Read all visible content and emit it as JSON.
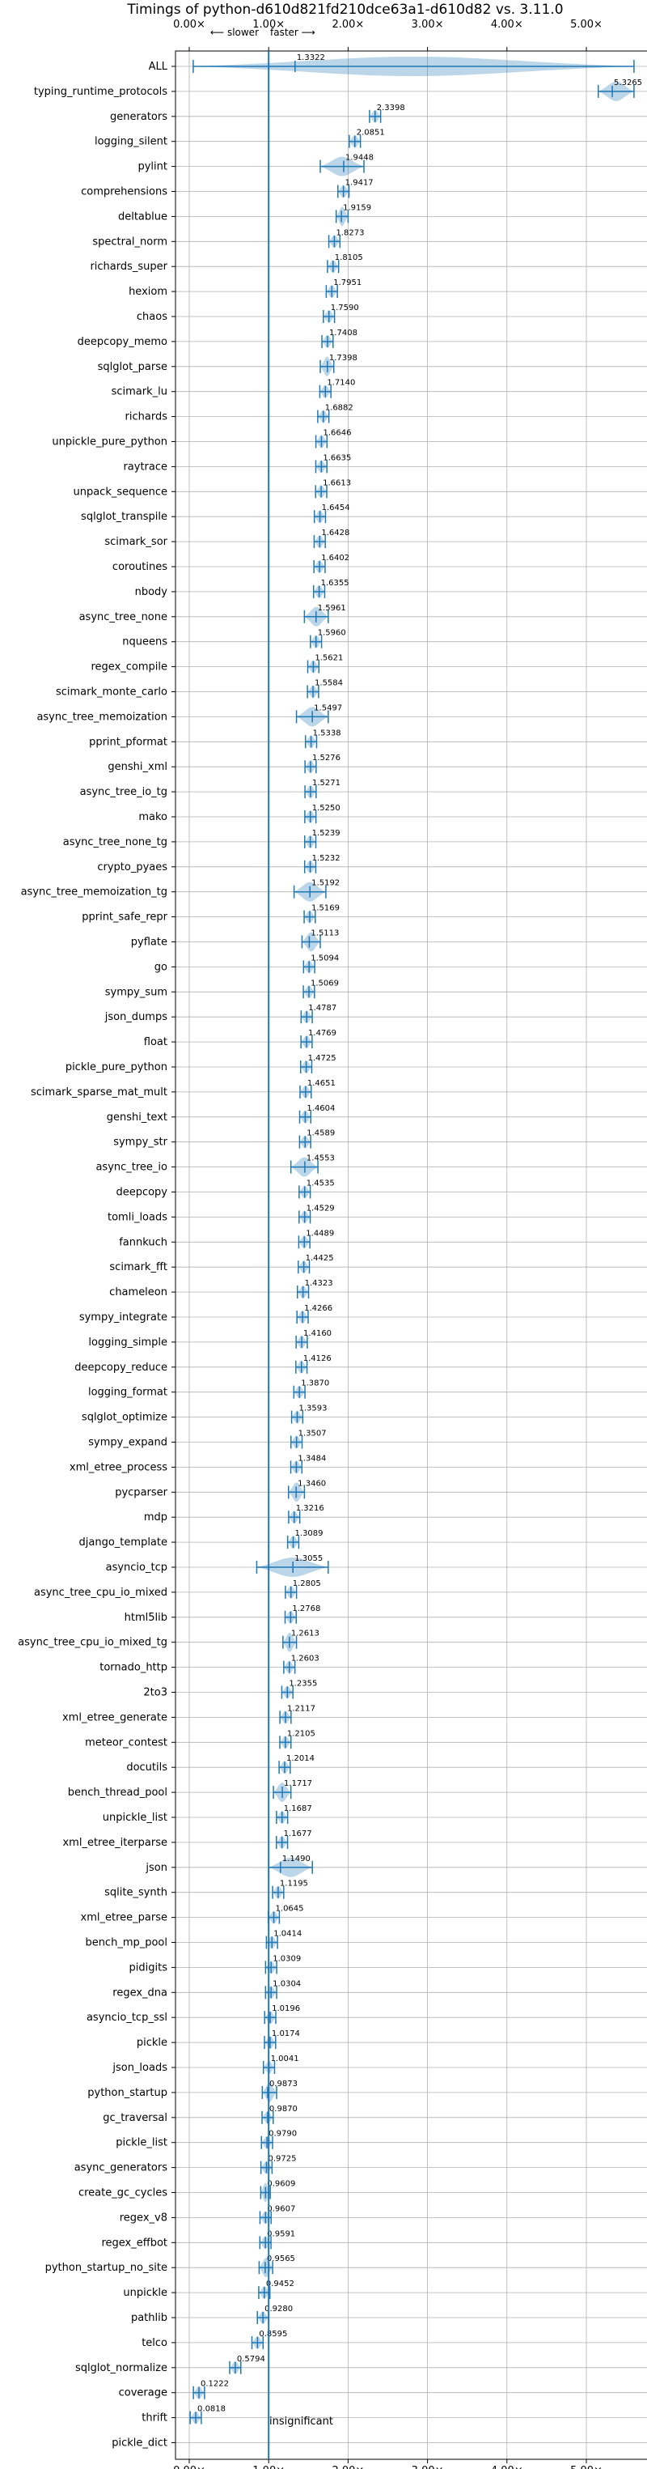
{
  "chart_data": {
    "type": "violin",
    "title": "Timings of python-d610d821fd210dce63a1-d610d82 vs. 3.11.0",
    "x_ticks": [
      "0.00×",
      "1.00×",
      "2.00×",
      "3.00×",
      "4.00×",
      "5.00×"
    ],
    "x_tick_values": [
      0,
      1,
      2,
      3,
      4,
      5
    ],
    "xlim": [
      -0.05,
      5.75
    ],
    "reference_x": 1.0,
    "direction_left": "⟵ slower",
    "direction_right": "faster ⟶",
    "grid": true,
    "annotation": "insignificant",
    "benchmarks": [
      {
        "name": "ALL",
        "value": 1.3322,
        "label": "1.3322"
      },
      {
        "name": "typing_runtime_protocols",
        "value": 5.3265,
        "label": "5.3265"
      },
      {
        "name": "generators",
        "value": 2.3398,
        "label": "2.3398"
      },
      {
        "name": "logging_silent",
        "value": 2.0851,
        "label": "2.0851"
      },
      {
        "name": "pylint",
        "value": 1.9448,
        "label": "1.9448"
      },
      {
        "name": "comprehensions",
        "value": 1.9417,
        "label": "1.9417"
      },
      {
        "name": "deltablue",
        "value": 1.9159,
        "label": "1.9159"
      },
      {
        "name": "spectral_norm",
        "value": 1.8273,
        "label": "1.8273"
      },
      {
        "name": "richards_super",
        "value": 1.8105,
        "label": "1.8105"
      },
      {
        "name": "hexiom",
        "value": 1.7951,
        "label": "1.7951"
      },
      {
        "name": "chaos",
        "value": 1.759,
        "label": "1.7590"
      },
      {
        "name": "deepcopy_memo",
        "value": 1.7408,
        "label": "1.7408"
      },
      {
        "name": "sqlglot_parse",
        "value": 1.7398,
        "label": "1.7398"
      },
      {
        "name": "scimark_lu",
        "value": 1.714,
        "label": "1.7140"
      },
      {
        "name": "richards",
        "value": 1.6882,
        "label": "1.6882"
      },
      {
        "name": "unpickle_pure_python",
        "value": 1.6646,
        "label": "1.6646"
      },
      {
        "name": "raytrace",
        "value": 1.6635,
        "label": "1.6635"
      },
      {
        "name": "unpack_sequence",
        "value": 1.6613,
        "label": "1.6613"
      },
      {
        "name": "sqlglot_transpile",
        "value": 1.6454,
        "label": "1.6454"
      },
      {
        "name": "scimark_sor",
        "value": 1.6428,
        "label": "1.6428"
      },
      {
        "name": "coroutines",
        "value": 1.6402,
        "label": "1.6402"
      },
      {
        "name": "nbody",
        "value": 1.6355,
        "label": "1.6355"
      },
      {
        "name": "async_tree_none",
        "value": 1.5961,
        "label": "1.5961"
      },
      {
        "name": "nqueens",
        "value": 1.596,
        "label": "1.5960"
      },
      {
        "name": "regex_compile",
        "value": 1.5621,
        "label": "1.5621"
      },
      {
        "name": "scimark_monte_carlo",
        "value": 1.5584,
        "label": "1.5584"
      },
      {
        "name": "async_tree_memoization",
        "value": 1.5497,
        "label": "1.5497"
      },
      {
        "name": "pprint_pformat",
        "value": 1.5338,
        "label": "1.5338"
      },
      {
        "name": "genshi_xml",
        "value": 1.5276,
        "label": "1.5276"
      },
      {
        "name": "async_tree_io_tg",
        "value": 1.5271,
        "label": "1.5271"
      },
      {
        "name": "mako",
        "value": 1.525,
        "label": "1.5250"
      },
      {
        "name": "async_tree_none_tg",
        "value": 1.5239,
        "label": "1.5239"
      },
      {
        "name": "crypto_pyaes",
        "value": 1.5232,
        "label": "1.5232"
      },
      {
        "name": "async_tree_memoization_tg",
        "value": 1.5192,
        "label": "1.5192"
      },
      {
        "name": "pprint_safe_repr",
        "value": 1.5169,
        "label": "1.5169"
      },
      {
        "name": "pyflate",
        "value": 1.5113,
        "label": "1.5113"
      },
      {
        "name": "go",
        "value": 1.5094,
        "label": "1.5094"
      },
      {
        "name": "sympy_sum",
        "value": 1.5069,
        "label": "1.5069"
      },
      {
        "name": "json_dumps",
        "value": 1.4787,
        "label": "1.4787"
      },
      {
        "name": "float",
        "value": 1.4769,
        "label": "1.4769"
      },
      {
        "name": "pickle_pure_python",
        "value": 1.4725,
        "label": "1.4725"
      },
      {
        "name": "scimark_sparse_mat_mult",
        "value": 1.4651,
        "label": "1.4651"
      },
      {
        "name": "genshi_text",
        "value": 1.4604,
        "label": "1.4604"
      },
      {
        "name": "sympy_str",
        "value": 1.4589,
        "label": "1.4589"
      },
      {
        "name": "async_tree_io",
        "value": 1.4553,
        "label": "1.4553"
      },
      {
        "name": "deepcopy",
        "value": 1.4535,
        "label": "1.4535"
      },
      {
        "name": "tomli_loads",
        "value": 1.4529,
        "label": "1.4529"
      },
      {
        "name": "fannkuch",
        "value": 1.4489,
        "label": "1.4489"
      },
      {
        "name": "scimark_fft",
        "value": 1.4425,
        "label": "1.4425"
      },
      {
        "name": "chameleon",
        "value": 1.4323,
        "label": "1.4323"
      },
      {
        "name": "sympy_integrate",
        "value": 1.4266,
        "label": "1.4266"
      },
      {
        "name": "logging_simple",
        "value": 1.416,
        "label": "1.4160"
      },
      {
        "name": "deepcopy_reduce",
        "value": 1.4126,
        "label": "1.4126"
      },
      {
        "name": "logging_format",
        "value": 1.387,
        "label": "1.3870"
      },
      {
        "name": "sqlglot_optimize",
        "value": 1.3593,
        "label": "1.3593"
      },
      {
        "name": "sympy_expand",
        "value": 1.3507,
        "label": "1.3507"
      },
      {
        "name": "xml_etree_process",
        "value": 1.3484,
        "label": "1.3484"
      },
      {
        "name": "pycparser",
        "value": 1.346,
        "label": "1.3460"
      },
      {
        "name": "mdp",
        "value": 1.3216,
        "label": "1.3216"
      },
      {
        "name": "django_template",
        "value": 1.3089,
        "label": "1.3089"
      },
      {
        "name": "asyncio_tcp",
        "value": 1.3055,
        "label": "1.3055"
      },
      {
        "name": "async_tree_cpu_io_mixed",
        "value": 1.2805,
        "label": "1.2805"
      },
      {
        "name": "html5lib",
        "value": 1.2768,
        "label": "1.2768"
      },
      {
        "name": "async_tree_cpu_io_mixed_tg",
        "value": 1.2613,
        "label": "1.2613"
      },
      {
        "name": "tornado_http",
        "value": 1.2603,
        "label": "1.2603"
      },
      {
        "name": "2to3",
        "value": 1.2355,
        "label": "1.2355"
      },
      {
        "name": "xml_etree_generate",
        "value": 1.2117,
        "label": "1.2117"
      },
      {
        "name": "meteor_contest",
        "value": 1.2105,
        "label": "1.2105"
      },
      {
        "name": "docutils",
        "value": 1.2014,
        "label": "1.2014"
      },
      {
        "name": "bench_thread_pool",
        "value": 1.1717,
        "label": "1.1717"
      },
      {
        "name": "unpickle_list",
        "value": 1.1687,
        "label": "1.1687"
      },
      {
        "name": "xml_etree_iterparse",
        "value": 1.1677,
        "label": "1.1677"
      },
      {
        "name": "json",
        "value": 1.149,
        "label": "1.1490"
      },
      {
        "name": "sqlite_synth",
        "value": 1.1195,
        "label": "1.1195"
      },
      {
        "name": "xml_etree_parse",
        "value": 1.0645,
        "label": "1.0645"
      },
      {
        "name": "bench_mp_pool",
        "value": 1.0414,
        "label": "1.0414"
      },
      {
        "name": "pidigits",
        "value": 1.0309,
        "label": "1.0309"
      },
      {
        "name": "regex_dna",
        "value": 1.0304,
        "label": "1.0304"
      },
      {
        "name": "asyncio_tcp_ssl",
        "value": 1.0196,
        "label": "1.0196"
      },
      {
        "name": "pickle",
        "value": 1.0174,
        "label": "1.0174"
      },
      {
        "name": "json_loads",
        "value": 1.0041,
        "label": "1.0041"
      },
      {
        "name": "python_startup",
        "value": 0.9873,
        "label": "0.9873"
      },
      {
        "name": "gc_traversal",
        "value": 0.987,
        "label": "0.9870"
      },
      {
        "name": "pickle_list",
        "value": 0.979,
        "label": "0.9790"
      },
      {
        "name": "async_generators",
        "value": 0.9725,
        "label": "0.9725"
      },
      {
        "name": "create_gc_cycles",
        "value": 0.9609,
        "label": "0.9609"
      },
      {
        "name": "regex_v8",
        "value": 0.9607,
        "label": "0.9607"
      },
      {
        "name": "regex_effbot",
        "value": 0.9591,
        "label": "0.9591"
      },
      {
        "name": "python_startup_no_site",
        "value": 0.9565,
        "label": "0.9565"
      },
      {
        "name": "unpickle",
        "value": 0.9452,
        "label": "0.9452"
      },
      {
        "name": "pathlib",
        "value": 0.928,
        "label": "0.9280"
      },
      {
        "name": "telco",
        "value": 0.8595,
        "label": "0.8595"
      },
      {
        "name": "sqlglot_normalize",
        "value": 0.5794,
        "label": "0.5794"
      },
      {
        "name": "coverage",
        "value": 0.1222,
        "label": "0.1222"
      },
      {
        "name": "thrift",
        "value": 0.0818,
        "label": "0.0818"
      },
      {
        "name": "pickle_dict",
        "value": 1.0,
        "label": ""
      }
    ],
    "wide_ranges": {
      "ALL": [
        0.05,
        5.6
      ],
      "typing_runtime_protocols": [
        5.15,
        5.6
      ],
      "pylint": [
        1.65,
        2.2
      ],
      "async_tree_none": [
        1.45,
        1.75
      ],
      "async_tree_memoization": [
        1.35,
        1.75
      ],
      "async_tree_memoization_tg": [
        1.32,
        1.72
      ],
      "pyflate": [
        1.42,
        1.65
      ],
      "async_tree_io": [
        1.28,
        1.62
      ],
      "pycparser": [
        1.25,
        1.45
      ],
      "asyncio_tcp": [
        0.85,
        1.75
      ],
      "json": [
        1.0,
        1.55
      ],
      "python_startup": [
        0.92,
        1.1
      ],
      "python_startup_no_site": [
        0.88,
        1.05
      ],
      "bench_thread_pool": [
        1.06,
        1.28
      ],
      "async_tree_cpu_io_mixed_tg": [
        1.18,
        1.35
      ],
      "create_gc_cycles": [
        0.9,
        1.02
      ],
      "deltablue": [
        1.85,
        2.0
      ],
      "sqlglot_parse": [
        1.65,
        1.82
      ]
    }
  }
}
